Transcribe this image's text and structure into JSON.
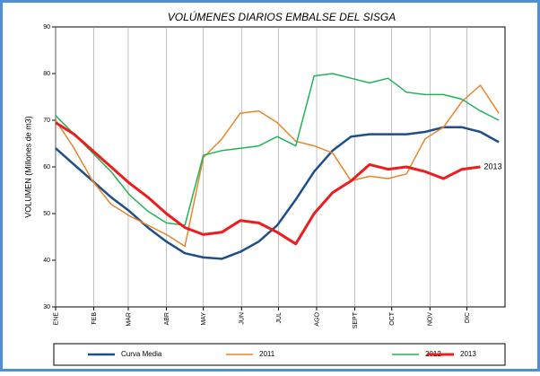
{
  "chart_data": {
    "type": "line",
    "title": "VOLÚMENES DIARIOS EMBALSE DEL SISGA",
    "y_label": "VOLUMEN (Millones de m3)",
    "x": [
      0,
      15,
      30,
      45,
      60,
      75,
      90,
      105,
      120,
      135,
      150,
      165,
      180,
      195,
      210,
      225,
      240,
      255,
      270,
      285,
      300,
      315,
      330,
      345,
      360
    ],
    "xlim": [
      0,
      365
    ],
    "xticks": [
      {
        "value": 0,
        "label": "ENE"
      },
      {
        "value": 31,
        "label": "FEB"
      },
      {
        "value": 59,
        "label": "MAR"
      },
      {
        "value": 90,
        "label": "ABR"
      },
      {
        "value": 120,
        "label": "MAY"
      },
      {
        "value": 151,
        "label": "JUN"
      },
      {
        "value": 181,
        "label": "JUL"
      },
      {
        "value": 212,
        "label": "AGO"
      },
      {
        "value": 243,
        "label": "SEPT"
      },
      {
        "value": 273,
        "label": "OCT"
      },
      {
        "value": 304,
        "label": "NOV"
      },
      {
        "value": 334,
        "label": "DIC"
      }
    ],
    "ylim": [
      30,
      90
    ],
    "yticks": [
      30,
      40,
      50,
      60,
      70,
      80,
      90
    ],
    "grid": "x",
    "legend": "bottom",
    "series": [
      {
        "name": "Curva Media",
        "color": "#1f4e8c",
        "width": 2.5,
        "values": [
          64,
          60.5,
          57,
          53.5,
          50.5,
          47,
          44,
          41.5,
          40.6,
          40.3,
          41.8,
          44,
          47.5,
          53,
          59,
          63.5,
          66.5,
          67,
          67,
          67,
          67.5,
          68.5,
          68.5,
          67.5,
          65.3
        ]
      },
      {
        "name": "2011",
        "color": "#e8852a",
        "width": 1.5,
        "values": [
          70,
          64,
          57,
          52,
          49.5,
          47.5,
          45.5,
          43,
          62,
          66,
          71.5,
          72,
          69.5,
          65.5,
          64.5,
          63,
          57,
          58,
          57.5,
          58.5,
          66,
          68.5,
          74,
          77.5,
          71.5
        ]
      },
      {
        "name": "2012",
        "color": "#22b35a",
        "width": 1.5,
        "values": [
          71,
          67,
          63,
          59,
          54,
          50.5,
          48,
          47.5,
          62.5,
          63.5,
          64,
          64.5,
          66.5,
          64.5,
          79.5,
          80,
          79,
          78,
          79,
          76,
          75.5,
          75.5,
          74.5,
          72,
          70
        ]
      },
      {
        "name": "2013",
        "color": "#ee1c1c",
        "width": 3,
        "values": [
          69.5,
          67,
          63.5,
          60,
          56.5,
          53.5,
          50,
          47,
          45.5,
          46,
          48.5,
          48,
          46,
          43.5,
          50,
          54.5,
          57,
          60.5,
          59.5,
          60,
          59,
          57.5,
          59.5,
          60,
          null
        ]
      }
    ],
    "annotations": [
      {
        "text": "2013",
        "series": 3
      }
    ]
  }
}
